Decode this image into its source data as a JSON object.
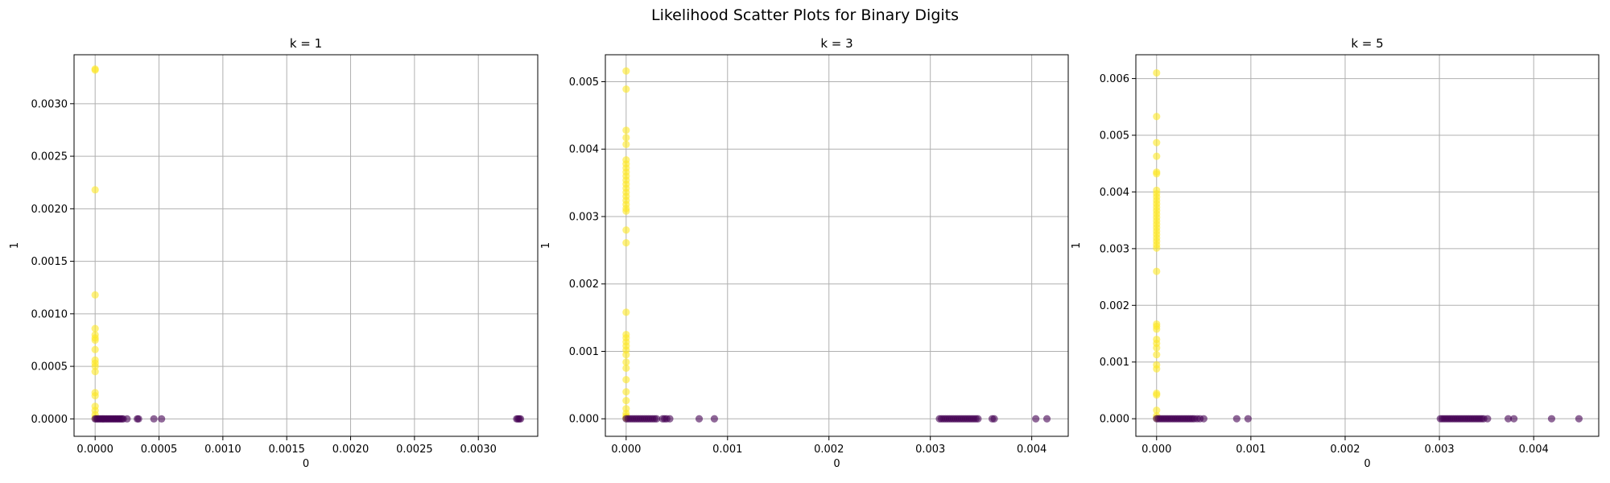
{
  "figure": {
    "title": "Likelihood Scatter Plots for Binary Digits"
  },
  "colors": {
    "class_0": "#440154",
    "class_1": "#fde725",
    "grid": "#b0b0b0",
    "axis": "#000000"
  },
  "chart_data": [
    {
      "type": "scatter",
      "title": "k = 1",
      "xlabel": "0",
      "ylabel": "1",
      "xlim": [
        -0.000165,
        0.003465
      ],
      "ylim": [
        -0.000166,
        0.003466
      ],
      "xticks": [
        0,
        0.0005,
        0.001,
        0.0015,
        0.002,
        0.0025,
        0.003
      ],
      "xtick_labels": [
        "0.0000",
        "0.0005",
        "0.0010",
        "0.0015",
        "0.0020",
        "0.0025",
        "0.0030"
      ],
      "yticks": [
        0,
        0.0005,
        0.001,
        0.0015,
        0.002,
        0.0025,
        0.003
      ],
      "ytick_labels": [
        "0.0000",
        "0.0005",
        "0.0010",
        "0.0015",
        "0.0020",
        "0.0025",
        "0.0030"
      ],
      "grid": true,
      "series": [
        {
          "class": 1,
          "x": [
            0,
            0,
            0,
            0,
            0,
            0,
            0,
            0,
            0,
            0,
            0,
            0,
            0,
            0,
            0,
            0,
            0,
            0,
            0
          ],
          "y": [
            0.00333,
            0.00332,
            0.00218,
            0.00118,
            0.00086,
            0.0008,
            0.00077,
            0.00075,
            0.00066,
            0.00056,
            0.00053,
            0.0005,
            0.00045,
            0.00025,
            0.00022,
            0.00012,
            8e-05,
            4e-05,
            1e-05
          ]
        },
        {
          "class": 0,
          "x": [
            0,
            1e-05,
            2e-05,
            3e-05,
            4e-05,
            5e-05,
            6e-05,
            7e-05,
            8e-05,
            9e-05,
            0.0001,
            0.00011,
            0.00012,
            0.00013,
            0.00014,
            0.00015,
            0.00016,
            0.00017,
            0.00018,
            0.00019,
            0.0002,
            0.00021,
            0.00022,
            0.00025,
            0.00033,
            0.00034,
            0.00046,
            0.00052,
            0.0033,
            0.00331,
            0.00332,
            0.00333
          ],
          "y": [
            0,
            0,
            0,
            0,
            0,
            0,
            0,
            0,
            0,
            0,
            0,
            0,
            0,
            0,
            0,
            0,
            0,
            0,
            0,
            0,
            0,
            0,
            0,
            0,
            0,
            0,
            0,
            0,
            0,
            0,
            0,
            0
          ]
        }
      ]
    },
    {
      "type": "scatter",
      "title": "k = 3",
      "xlabel": "0",
      "ylabel": "1",
      "xlim": [
        -0.000205,
        0.00436
      ],
      "ylim": [
        -0.00026,
        0.0054
      ],
      "xticks": [
        0,
        0.001,
        0.002,
        0.003,
        0.004
      ],
      "xtick_labels": [
        "0.000",
        "0.001",
        "0.002",
        "0.003",
        "0.004"
      ],
      "yticks": [
        0,
        0.001,
        0.002,
        0.003,
        0.004,
        0.005
      ],
      "ytick_labels": [
        "0.000",
        "0.001",
        "0.002",
        "0.003",
        "0.004",
        "0.005"
      ],
      "grid": true,
      "series": [
        {
          "class": 1,
          "x": [
            0,
            0,
            0,
            0,
            0,
            0,
            0,
            0,
            0,
            0,
            0,
            0,
            0,
            0,
            0,
            0,
            0,
            0,
            0,
            0,
            0,
            0,
            0,
            0,
            0,
            0,
            0,
            0,
            0,
            0,
            0,
            0,
            0,
            0,
            0,
            0,
            0,
            0
          ],
          "y": [
            0.00516,
            0.00489,
            0.00428,
            0.00417,
            0.00407,
            0.00384,
            0.00378,
            0.00372,
            0.00366,
            0.0036,
            0.00354,
            0.00348,
            0.00342,
            0.00336,
            0.0033,
            0.00324,
            0.00318,
            0.00312,
            0.00308,
            0.0028,
            0.00261,
            0.00158,
            0.00125,
            0.0012,
            0.00114,
            0.00108,
            0.00102,
            0.00095,
            0.00084,
            0.00075,
            0.00058,
            0.0004,
            0.00027,
            0.00015,
            8e-05,
            4e-05,
            2e-05,
            1e-05
          ]
        },
        {
          "class": 0,
          "x": [
            0,
            2e-05,
            4e-05,
            6e-05,
            8e-05,
            0.0001,
            0.00012,
            0.00014,
            0.00016,
            0.00018,
            0.0002,
            0.00022,
            0.00024,
            0.00026,
            0.00028,
            0.0003,
            0.00036,
            0.00038,
            0.0004,
            0.00043,
            0.00072,
            0.00087,
            0.00309,
            0.00311,
            0.00313,
            0.00315,
            0.00317,
            0.00319,
            0.00321,
            0.00323,
            0.00325,
            0.00327,
            0.00329,
            0.00331,
            0.00333,
            0.00335,
            0.00337,
            0.00339,
            0.00341,
            0.00343,
            0.00345,
            0.00347,
            0.00361,
            0.00363,
            0.00404,
            0.00415
          ],
          "y": [
            0,
            0,
            0,
            0,
            0,
            0,
            0,
            0,
            0,
            0,
            0,
            0,
            0,
            0,
            0,
            0,
            0,
            0,
            0,
            0,
            0,
            0,
            0,
            0,
            0,
            0,
            0,
            0,
            0,
            0,
            0,
            0,
            0,
            0,
            0,
            0,
            0,
            0,
            0,
            0,
            0,
            0,
            0,
            0,
            0,
            0
          ]
        }
      ]
    },
    {
      "type": "scatter",
      "title": "k = 5",
      "xlabel": "0",
      "ylabel": "1",
      "xlim": [
        -0.00022,
        0.00469
      ],
      "ylim": [
        -0.00031,
        0.00642
      ],
      "xticks": [
        0,
        0.001,
        0.002,
        0.003,
        0.004
      ],
      "xtick_labels": [
        "0.000",
        "0.001",
        "0.002",
        "0.003",
        "0.004"
      ],
      "yticks": [
        0,
        0.001,
        0.002,
        0.003,
        0.004,
        0.005,
        0.006
      ],
      "ytick_labels": [
        "0.000",
        "0.001",
        "0.002",
        "0.003",
        "0.004",
        "0.005",
        "0.006"
      ],
      "grid": true,
      "series": [
        {
          "class": 1,
          "x": [
            0,
            0,
            0,
            0,
            0,
            0,
            0,
            0,
            0,
            0,
            0,
            0,
            0,
            0,
            0,
            0,
            0,
            0,
            0,
            0,
            0,
            0,
            0,
            0,
            0,
            0,
            0,
            0,
            0,
            0,
            0,
            0,
            0,
            0,
            0,
            0,
            0,
            0,
            0
          ],
          "y": [
            0.0061,
            0.00533,
            0.00487,
            0.00463,
            0.00435,
            0.00432,
            0.00403,
            0.00397,
            0.00391,
            0.00385,
            0.00379,
            0.00373,
            0.00367,
            0.00361,
            0.00355,
            0.00349,
            0.00343,
            0.00337,
            0.00331,
            0.00325,
            0.00319,
            0.00313,
            0.00307,
            0.00301,
            0.0026,
            0.00167,
            0.00163,
            0.00158,
            0.0014,
            0.00133,
            0.00125,
            0.00113,
            0.00095,
            0.00088,
            0.00045,
            0.00042,
            0.00015,
            5e-05,
            1e-05
          ]
        },
        {
          "class": 0,
          "x": [
            0,
            2e-05,
            4e-05,
            6e-05,
            8e-05,
            0.0001,
            0.00012,
            0.00014,
            0.00016,
            0.00018,
            0.0002,
            0.00022,
            0.00024,
            0.00026,
            0.00028,
            0.0003,
            0.00032,
            0.00034,
            0.00036,
            0.00038,
            0.0004,
            0.00043,
            0.00046,
            0.0005,
            0.00085,
            0.00097,
            0.00301,
            0.00303,
            0.00305,
            0.00307,
            0.00309,
            0.00311,
            0.00313,
            0.00315,
            0.00317,
            0.00319,
            0.00321,
            0.00323,
            0.00325,
            0.00327,
            0.00329,
            0.00331,
            0.00333,
            0.00335,
            0.00337,
            0.00339,
            0.00341,
            0.00343,
            0.00345,
            0.00347,
            0.00351,
            0.00373,
            0.00379,
            0.00419,
            0.00448
          ],
          "y": [
            0,
            0,
            0,
            0,
            0,
            0,
            0,
            0,
            0,
            0,
            0,
            0,
            0,
            0,
            0,
            0,
            0,
            0,
            0,
            0,
            0,
            0,
            0,
            0,
            0,
            0,
            0,
            0,
            0,
            0,
            0,
            0,
            0,
            0,
            0,
            0,
            0,
            0,
            0,
            0,
            0,
            0,
            0,
            0,
            0,
            0,
            0,
            0,
            0,
            0,
            0,
            0,
            0,
            0,
            0
          ]
        }
      ]
    }
  ]
}
